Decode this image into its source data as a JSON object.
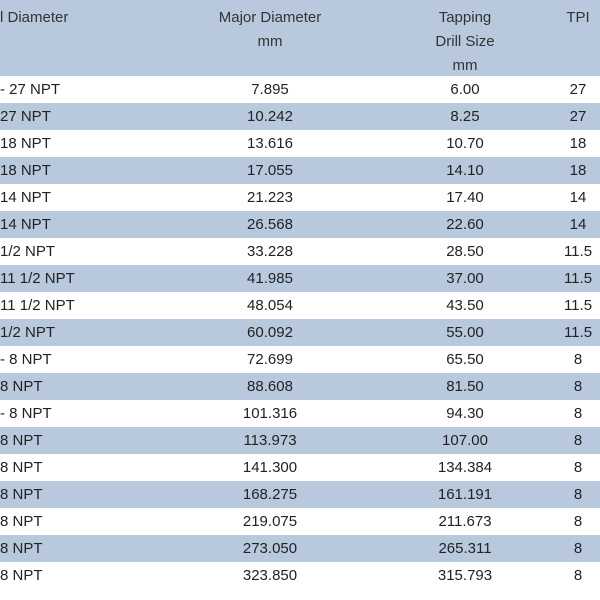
{
  "header": {
    "nominal": "l Diameter",
    "major_line1": "Major Diameter",
    "major_line2": "mm",
    "tap_line1": "Tapping",
    "tap_line2": "Drill Size",
    "tap_line3": "mm",
    "tpi": "TPI"
  },
  "rows": [
    {
      "size": "- 27 NPT",
      "major": "7.895",
      "tap": "6.00",
      "tpi": "27"
    },
    {
      "size": "27 NPT",
      "major": "10.242",
      "tap": "8.25",
      "tpi": "27"
    },
    {
      "size": "18 NPT",
      "major": "13.616",
      "tap": "10.70",
      "tpi": "18"
    },
    {
      "size": "18 NPT",
      "major": "17.055",
      "tap": "14.10",
      "tpi": "18"
    },
    {
      "size": "14 NPT",
      "major": "21.223",
      "tap": "17.40",
      "tpi": "14"
    },
    {
      "size": "14 NPT",
      "major": "26.568",
      "tap": "22.60",
      "tpi": "14"
    },
    {
      "size": "1/2 NPT",
      "major": "33.228",
      "tap": "28.50",
      "tpi": "11.5"
    },
    {
      "size": "11 1/2 NPT",
      "major": "41.985",
      "tap": "37.00",
      "tpi": "11.5"
    },
    {
      "size": "11 1/2 NPT",
      "major": "48.054",
      "tap": "43.50",
      "tpi": "11.5"
    },
    {
      "size": "1/2 NPT",
      "major": "60.092",
      "tap": "55.00",
      "tpi": "11.5"
    },
    {
      "size": "- 8 NPT",
      "major": "72.699",
      "tap": "65.50",
      "tpi": "8"
    },
    {
      "size": "8 NPT",
      "major": "88.608",
      "tap": "81.50",
      "tpi": "8"
    },
    {
      "size": "- 8 NPT",
      "major": "101.316",
      "tap": "94.30",
      "tpi": "8"
    },
    {
      "size": "8 NPT",
      "major": "113.973",
      "tap": "107.00",
      "tpi": "8"
    },
    {
      "size": "8 NPT",
      "major": "141.300",
      "tap": "134.384",
      "tpi": "8"
    },
    {
      "size": "8 NPT",
      "major": "168.275",
      "tap": "161.191",
      "tpi": "8"
    },
    {
      "size": "8 NPT",
      "major": "219.075",
      "tap": "211.673",
      "tpi": "8"
    },
    {
      "size": "8 NPT",
      "major": "273.050",
      "tap": "265.311",
      "tpi": "8"
    },
    {
      "size": "8 NPT",
      "major": "323.850",
      "tap": "315.793",
      "tpi": "8"
    }
  ],
  "colors": {
    "band": "#b8c9dd",
    "row_light": "#ffffff",
    "text": "#222222"
  }
}
